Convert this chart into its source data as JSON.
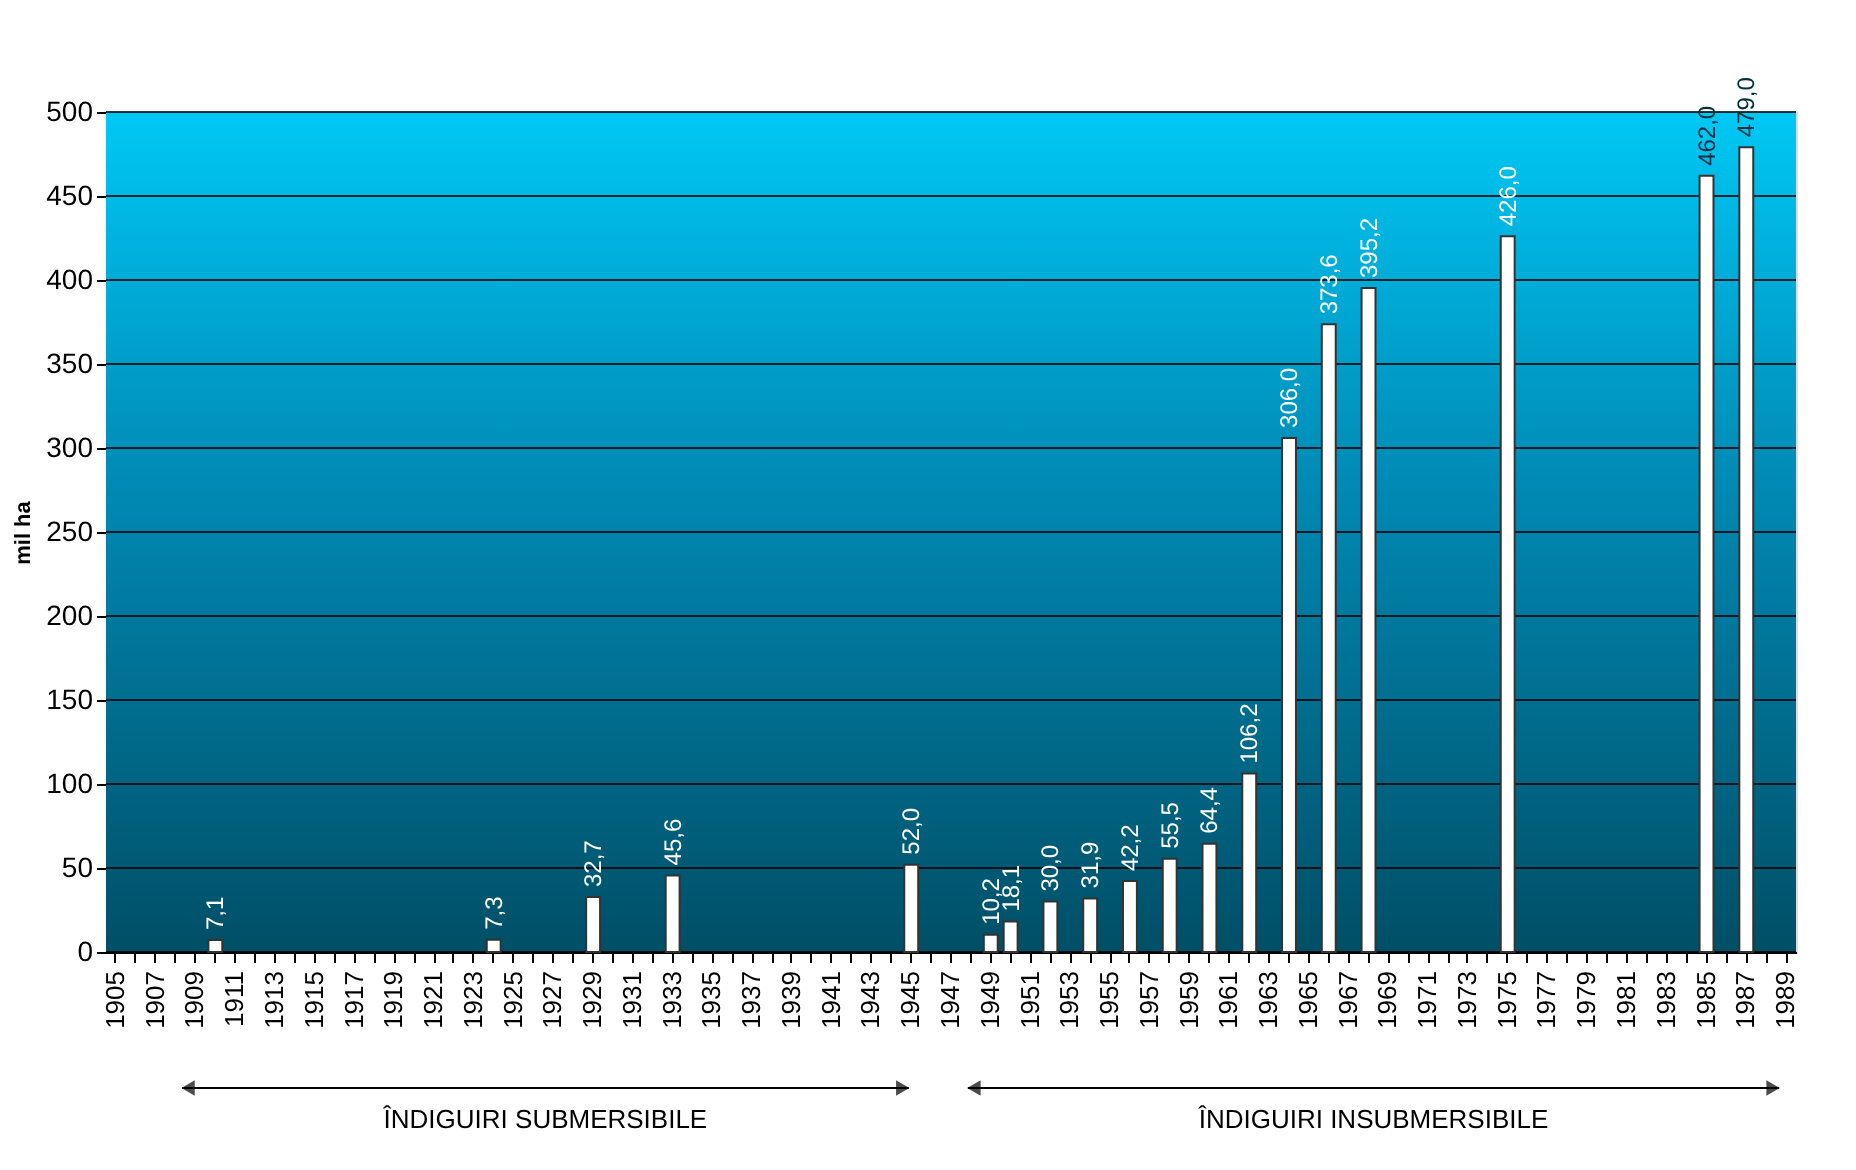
{
  "chart_data": {
    "type": "bar",
    "categories": [
      "1905",
      null,
      "1907",
      null,
      "1909",
      null,
      "1911",
      null,
      "1913",
      null,
      "1915",
      null,
      "1917",
      null,
      "1919",
      null,
      "1921",
      null,
      "1923",
      null,
      "1925",
      null,
      "1927",
      null,
      "1929",
      null,
      "1931",
      null,
      "1933",
      null,
      "1935",
      null,
      "1937",
      null,
      "1939",
      null,
      "1941",
      null,
      "1943",
      null,
      "1945",
      null,
      "1947",
      null,
      "1949",
      null,
      "1951",
      null,
      "1953",
      null,
      "1955",
      null,
      "1957",
      null,
      "1959",
      null,
      "1961",
      null,
      "1963",
      null,
      "1965",
      null,
      "1967",
      null,
      "1969",
      null,
      "1971",
      null,
      "1973",
      null,
      "1975",
      null,
      "1977",
      null,
      "1979",
      null,
      "1981",
      null,
      "1983",
      null,
      "1985",
      null,
      "1987",
      null,
      "1989"
    ],
    "values": [
      null,
      null,
      null,
      null,
      null,
      7.1,
      null,
      null,
      null,
      null,
      null,
      null,
      null,
      null,
      null,
      null,
      null,
      null,
      null,
      7.3,
      null,
      null,
      null,
      null,
      32.7,
      null,
      null,
      null,
      45.6,
      null,
      null,
      null,
      null,
      null,
      null,
      null,
      null,
      null,
      null,
      null,
      52.0,
      null,
      null,
      null,
      10.2,
      18.1,
      null,
      30.0,
      null,
      31.9,
      null,
      42.2,
      null,
      55.5,
      null,
      64.4,
      null,
      106.2,
      null,
      306.0,
      null,
      373.6,
      null,
      395.2,
      null,
      null,
      null,
      null,
      null,
      null,
      426.0,
      null,
      null,
      null,
      null,
      null,
      null,
      null,
      null,
      null,
      462.0,
      null,
      479.0,
      null,
      null
    ],
    "value_labels": [
      null,
      null,
      null,
      null,
      null,
      "7,1",
      null,
      null,
      null,
      null,
      null,
      null,
      null,
      null,
      null,
      null,
      null,
      null,
      null,
      "7,3",
      null,
      null,
      null,
      null,
      "32,7",
      null,
      null,
      null,
      "45,6",
      null,
      null,
      null,
      null,
      null,
      null,
      null,
      null,
      null,
      null,
      null,
      "52,0",
      null,
      null,
      null,
      "10,2",
      "18,1",
      null,
      "30,0",
      null,
      "31,9",
      null,
      "42,2",
      null,
      "55,5",
      null,
      "64,4",
      null,
      "106,2",
      null,
      "306,0",
      null,
      "373,6",
      null,
      "395,2",
      null,
      null,
      null,
      null,
      null,
      null,
      "426,0",
      null,
      null,
      null,
      null,
      null,
      null,
      null,
      null,
      null,
      "462,0",
      null,
      "479,0",
      null,
      null
    ],
    "color": "#ffffff",
    "ylabel": "mil ha",
    "ylim": [
      0,
      500
    ],
    "yticks": [
      0,
      50,
      100,
      150,
      200,
      250,
      300,
      350,
      400,
      450,
      500
    ],
    "grid": "y",
    "annotations": [
      "ÎNDIGUIRI SUBMERSIBILE",
      "ÎNDIGUIRI INSUBMERSIBILE"
    ]
  }
}
